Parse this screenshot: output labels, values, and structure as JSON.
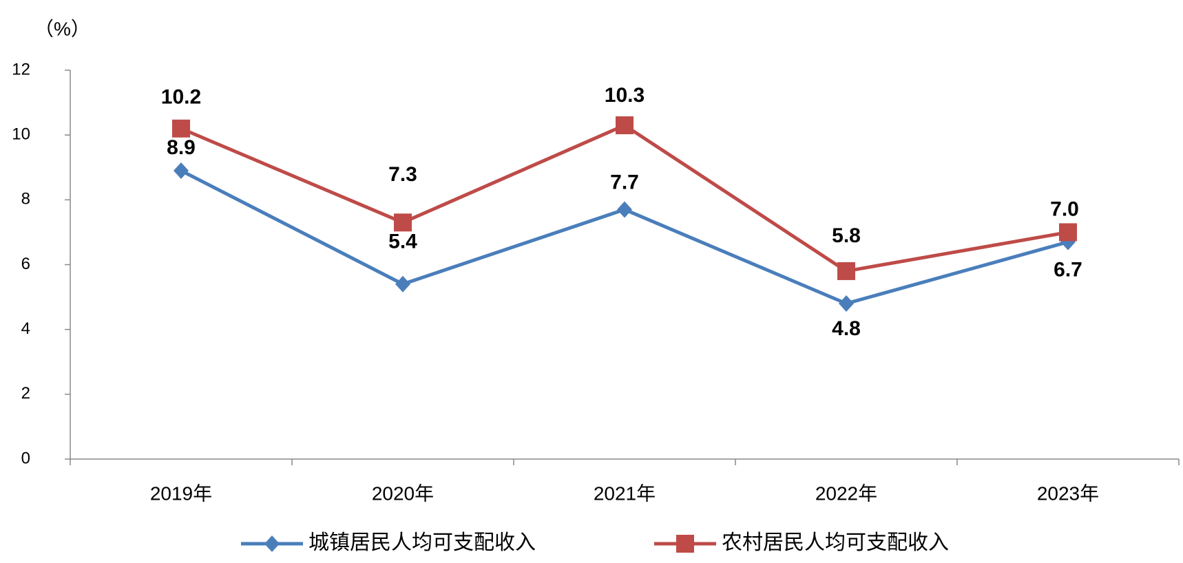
{
  "chart_data": {
    "type": "line",
    "ylabel": "（%）",
    "categories": [
      "2019年",
      "2020年",
      "2021年",
      "2022年",
      "2023年"
    ],
    "series": [
      {
        "name": "城镇居民人均可支配收入",
        "color": "#4a7ebb",
        "marker": "diamond",
        "values": [
          8.9,
          5.4,
          7.7,
          4.8,
          6.7
        ]
      },
      {
        "name": "农村居民人均可支配收入",
        "color": "#be4b48",
        "marker": "square",
        "values": [
          10.2,
          7.3,
          10.3,
          5.8,
          7.0
        ],
        "value_labels": [
          "10.2",
          "7.3",
          "10.3",
          "5.8",
          "7.0"
        ]
      }
    ],
    "ylim": [
      0,
      12
    ],
    "yticks": [
      0,
      2,
      4,
      6,
      8,
      10,
      12
    ],
    "grid": false
  }
}
